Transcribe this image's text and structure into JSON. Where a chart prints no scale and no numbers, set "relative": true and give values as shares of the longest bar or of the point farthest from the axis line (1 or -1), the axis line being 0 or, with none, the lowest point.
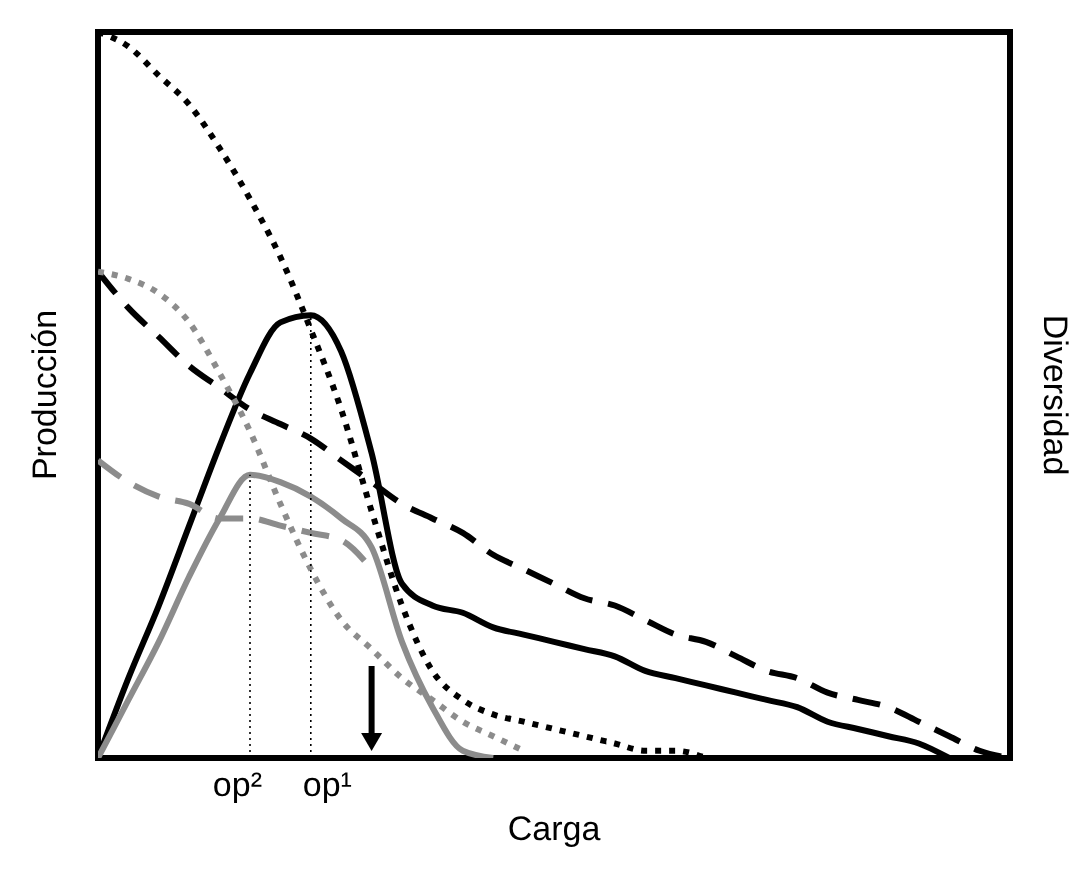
{
  "chart_data": {
    "type": "line",
    "relative": true,
    "xlabel": "Carga",
    "ylabel": "Producción",
    "y2label": "Diversidad",
    "annotations": [
      "op²",
      "op¹"
    ],
    "categories": [
      null,
      null,
      null,
      null,
      null,
      null,
      null,
      null,
      null,
      null,
      null,
      null,
      null,
      null,
      null,
      null,
      null,
      null,
      null,
      null,
      null,
      null,
      null,
      null,
      null,
      null,
      null,
      null,
      null,
      null,
      null
    ],
    "series": [
      {
        "color": "#000000",
        "line_style": "dotted",
        "values": [
          1.0,
          0.98,
          0.94,
          0.9,
          0.84,
          0.77,
          0.69,
          0.59,
          0.48,
          0.34,
          0.21,
          0.12,
          0.08,
          0.06,
          0.05,
          0.04,
          0.03,
          0.02,
          0.01,
          0.01,
          0,
          null,
          null,
          null,
          null,
          null,
          null,
          null,
          null,
          null,
          null
        ]
      },
      {
        "color": "#000000",
        "line_style": "solid",
        "values": [
          0,
          0.11,
          0.21,
          0.32,
          0.43,
          0.53,
          0.6,
          0.61,
          0.56,
          0.42,
          0.24,
          0.21,
          0.2,
          0.18,
          0.17,
          0.16,
          0.15,
          0.14,
          0.12,
          0.11,
          0.1,
          0.09,
          0.08,
          0.07,
          0.05,
          0.04,
          0.03,
          0.02,
          0,
          null,
          null
        ]
      },
      {
        "color": "#000000",
        "line_style": "dashed",
        "values": [
          0.67,
          0.62,
          0.58,
          0.54,
          0.51,
          0.48,
          0.46,
          0.44,
          0.41,
          0.38,
          0.35,
          0.33,
          0.31,
          0.28,
          0.26,
          0.24,
          0.22,
          0.21,
          0.19,
          0.17,
          0.16,
          0.14,
          0.12,
          0.11,
          0.09,
          0.08,
          0.07,
          0.05,
          0.03,
          0.01,
          0
        ]
      },
      {
        "color": "#8c8c8c",
        "line_style": "solid",
        "values": [
          0,
          0.08,
          0.16,
          0.25,
          0.33,
          0.39,
          0.38,
          0.36,
          0.33,
          0.29,
          0.16,
          0.07,
          0.01,
          0,
          null,
          null,
          null,
          null,
          null,
          null,
          null,
          null,
          null,
          null,
          null,
          null,
          null,
          null,
          null,
          null,
          null
        ]
      },
      {
        "color": "#8c8c8c",
        "line_style": "dotted",
        "values": [
          0.67,
          0.66,
          0.64,
          0.6,
          0.53,
          0.45,
          0.35,
          0.26,
          0.19,
          0.15,
          0.11,
          0.08,
          0.05,
          0.03,
          0.01,
          null,
          null,
          null,
          null,
          null,
          null,
          null,
          null,
          null,
          null,
          null,
          null,
          null,
          null,
          null,
          null
        ]
      },
      {
        "color": "#8c8c8c",
        "line_style": "dashed",
        "values": [
          0.41,
          0.38,
          0.36,
          0.35,
          0.33,
          0.33,
          0.32,
          0.31,
          0.3,
          0.26,
          null,
          null,
          null,
          null,
          null,
          null,
          null,
          null,
          null,
          null,
          null,
          null,
          null,
          null,
          null,
          null,
          null,
          null,
          null,
          null,
          null
        ]
      }
    ]
  }
}
